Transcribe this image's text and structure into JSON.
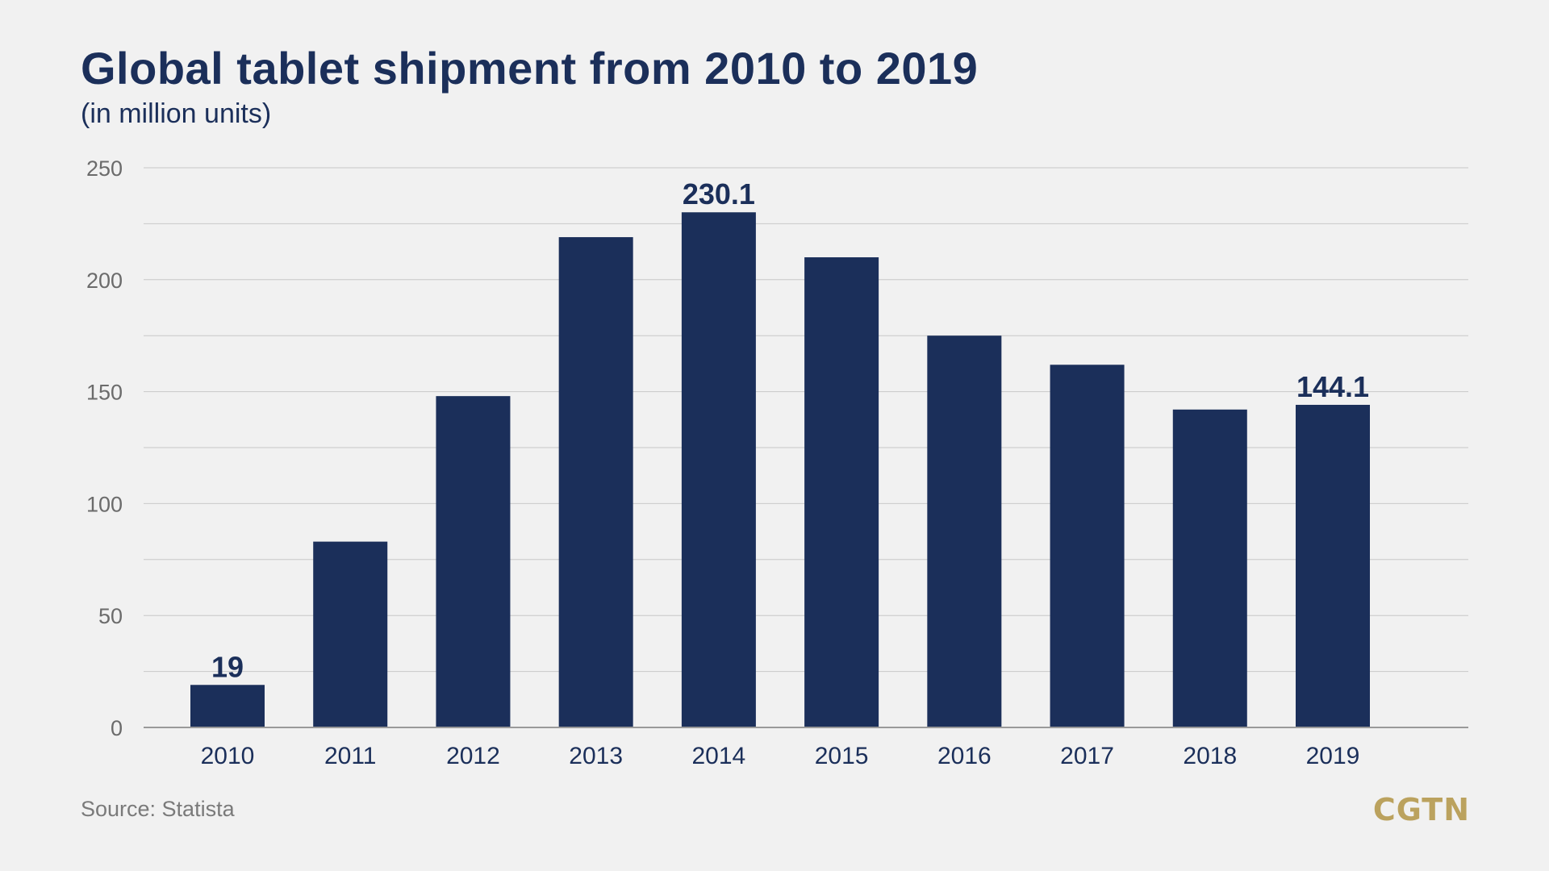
{
  "colors": {
    "background": "#f1f1f1",
    "bar": "#1b2f5a",
    "title": "#1b2f5a",
    "grid": "#c8c8c8",
    "axis_text": "#6b6b6b",
    "logo": "#bba25e"
  },
  "chart_data": {
    "type": "bar",
    "title": "Global tablet shipment from 2010 to 2019",
    "subtitle": "(in million units)",
    "xlabel": "",
    "ylabel": "",
    "categories": [
      "2010",
      "2011",
      "2012",
      "2013",
      "2014",
      "2015",
      "2016",
      "2017",
      "2018",
      "2019"
    ],
    "values": [
      19,
      83,
      148,
      219,
      230.1,
      210,
      175,
      162,
      142,
      144.1
    ],
    "data_labels": [
      {
        "index": 0,
        "text": "19"
      },
      {
        "index": 4,
        "text": "230.1"
      },
      {
        "index": 9,
        "text": "144.1"
      }
    ],
    "ylim": [
      0,
      250
    ],
    "yticks": [
      0,
      50,
      100,
      150,
      200,
      250
    ],
    "grid": true,
    "legend": "none"
  },
  "footer": {
    "source": "Source: Statista",
    "logo_text": "CGTN"
  }
}
